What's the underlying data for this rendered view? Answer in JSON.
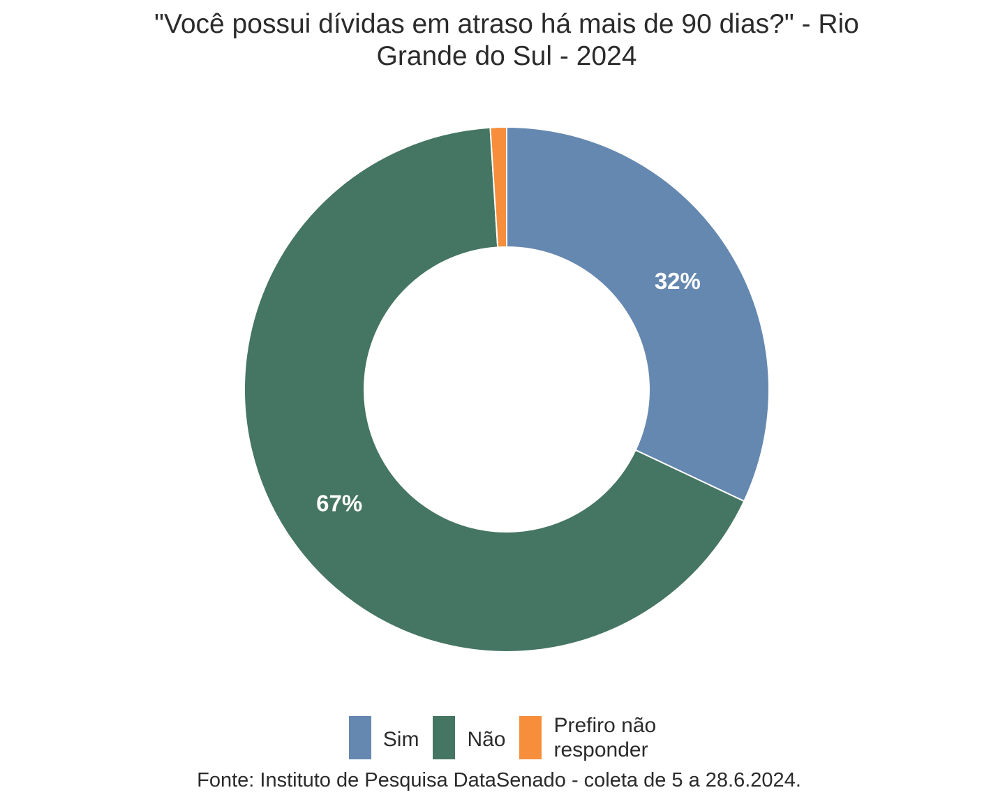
{
  "chart_data": {
    "type": "pie",
    "title_lines": [
      "\"Você possui dívidas em atraso há mais de 90 dias?\" - Rio",
      "Grande do Sul - 2024"
    ],
    "slices": [
      {
        "label": "Sim",
        "value": 32,
        "display": "32%",
        "color": "#6588b0"
      },
      {
        "label": "Não",
        "value": 67,
        "display": "67%",
        "color": "#457563"
      },
      {
        "label": "Prefiro não\nresponder",
        "value": 1,
        "display": "",
        "color": "#f68e3c"
      }
    ],
    "legend_position": "bottom",
    "donut": true,
    "caption": "Fonte: Instituto de Pesquisa DataSenado - coleta de 5 a 28.6.2024."
  }
}
